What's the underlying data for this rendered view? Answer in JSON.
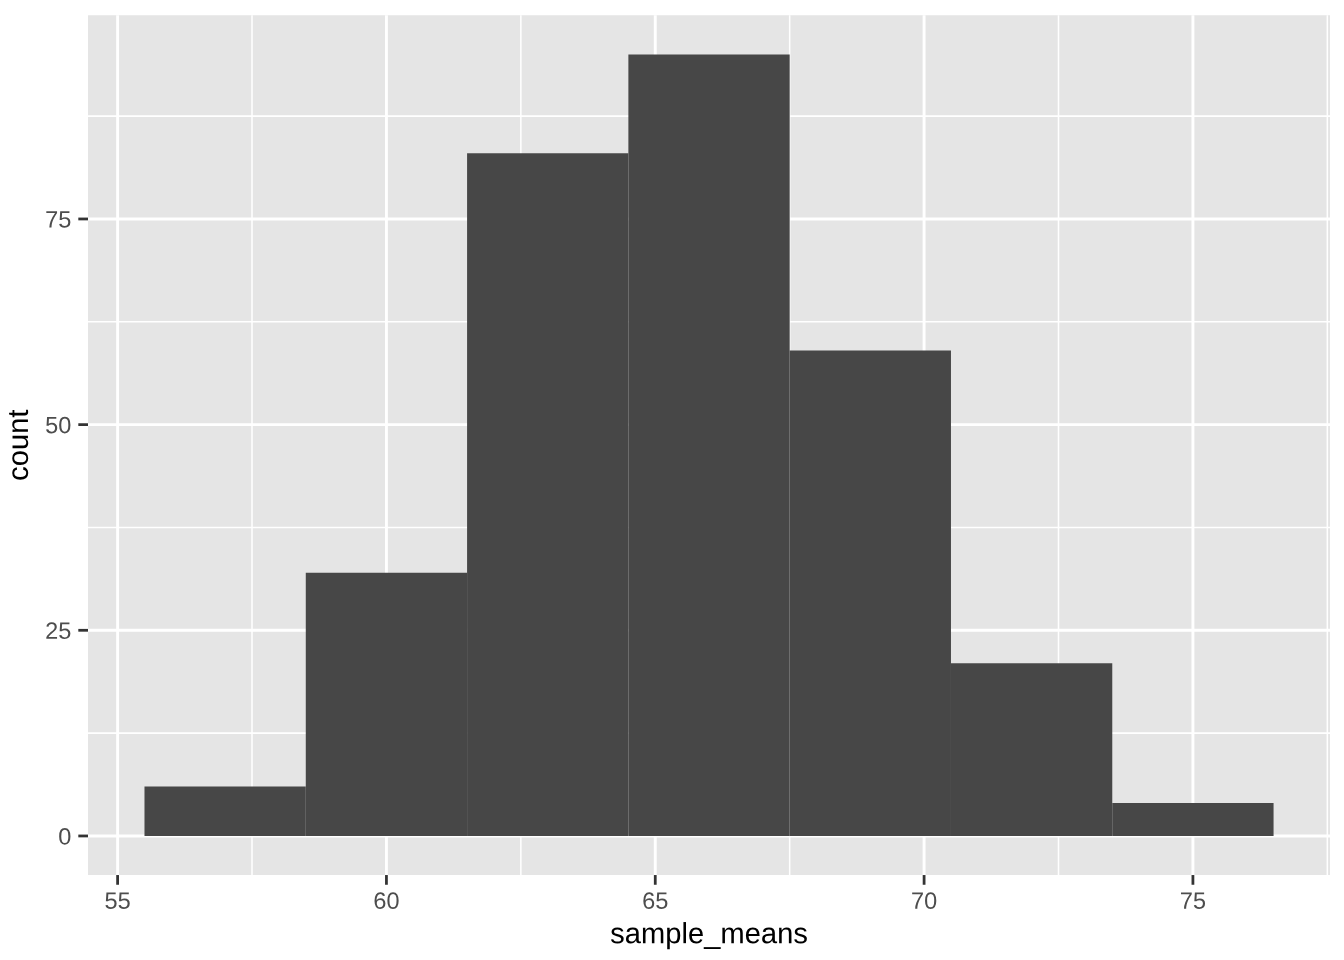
{
  "chart_data": {
    "type": "histogram",
    "bins": [
      55.5,
      58.5,
      61.5,
      64.5,
      67.5,
      70.5,
      73.5,
      76.5
    ],
    "values": [
      6,
      32,
      83,
      95,
      59,
      21,
      4
    ],
    "color": "#474747",
    "xlabel": "sample_means",
    "ylabel": "count",
    "xlim": [
      54.45,
      77.55
    ],
    "ylim": [
      -4.75,
      99.75
    ],
    "xticks": [
      55,
      60,
      65,
      70,
      75
    ],
    "yticks": [
      0,
      25,
      50,
      75
    ],
    "grid": true
  }
}
